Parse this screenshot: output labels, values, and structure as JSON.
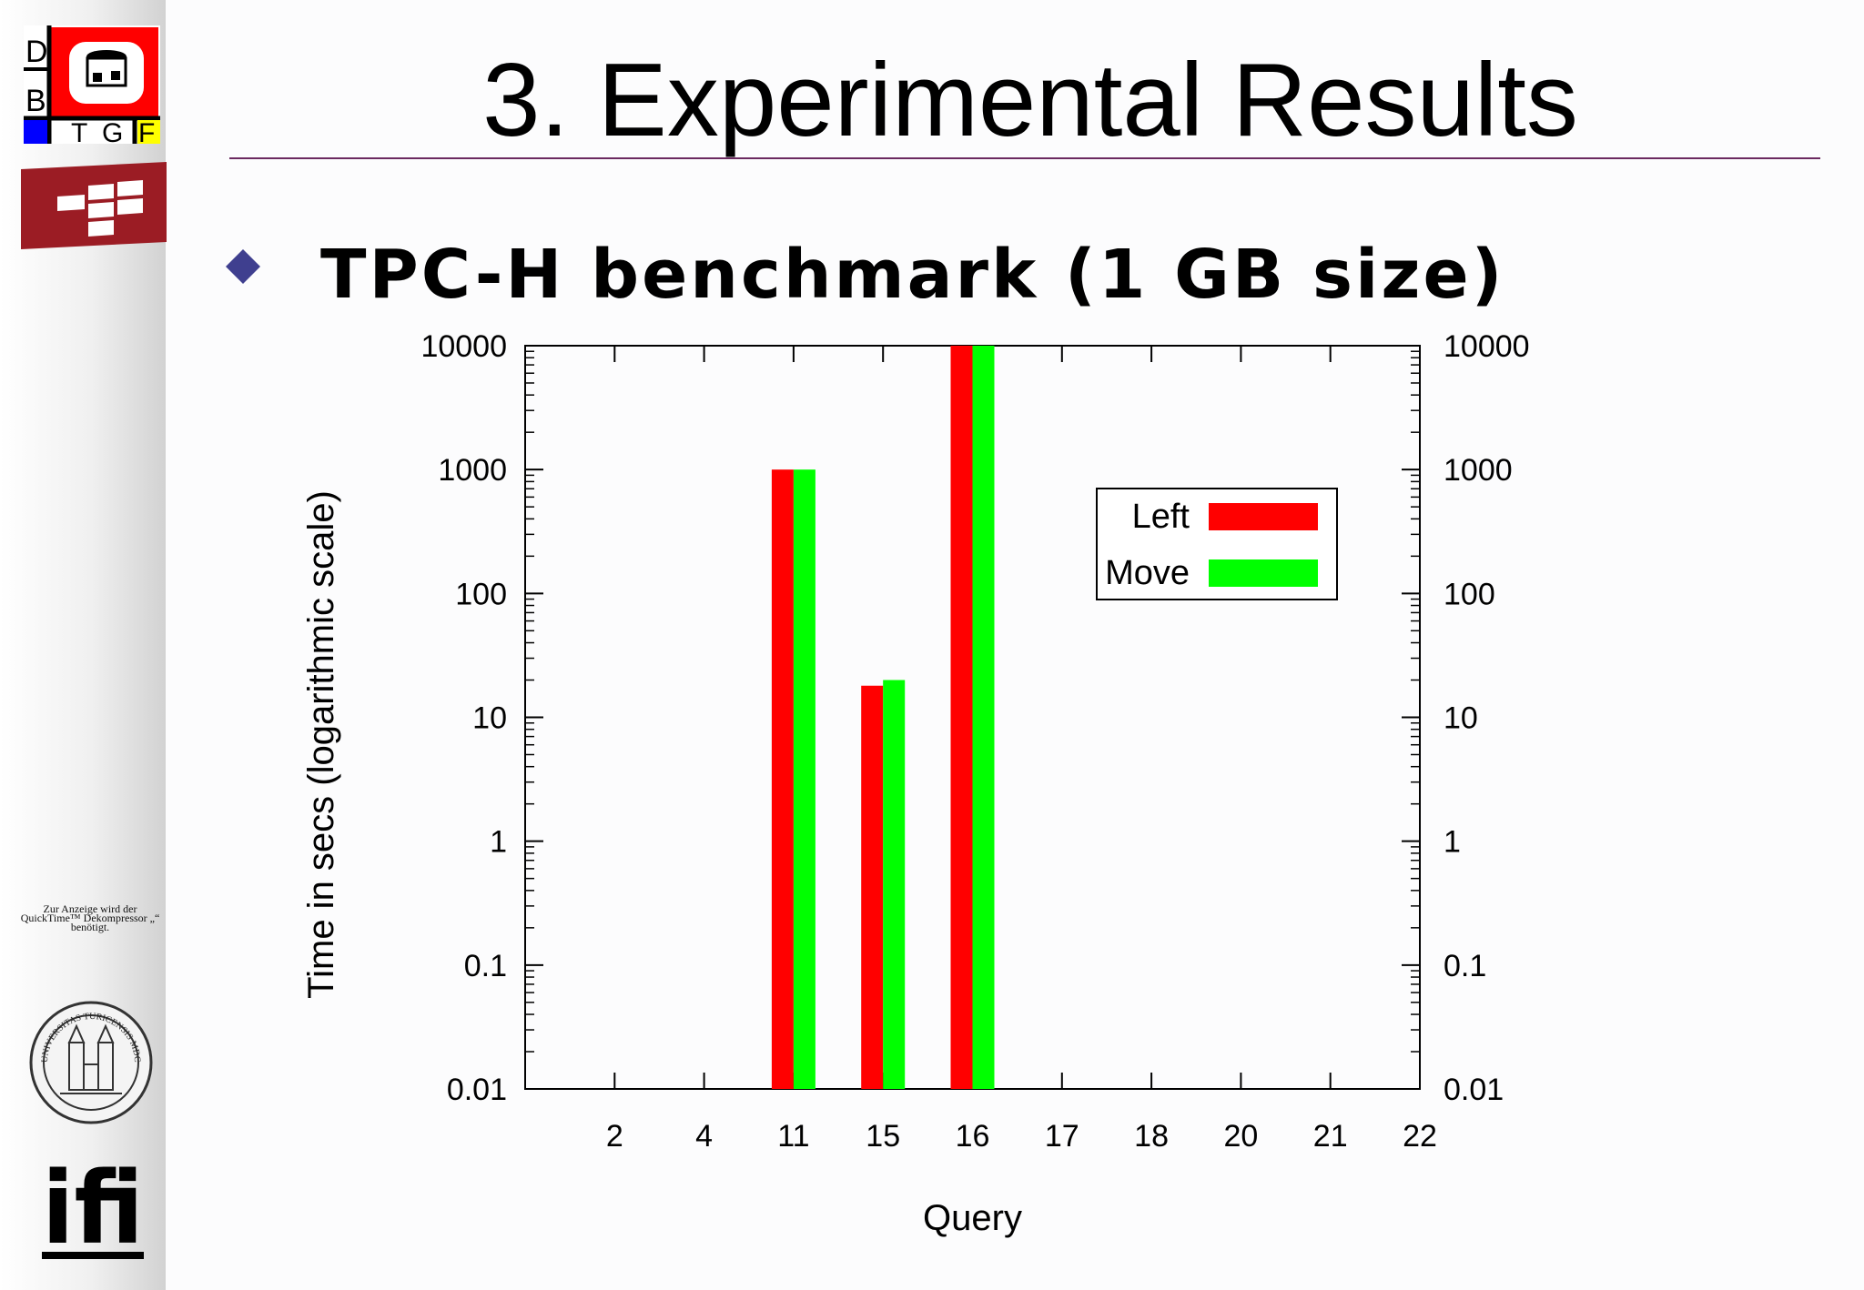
{
  "slide": {
    "title": "3. Experimental Results",
    "bullet": "TPC-H benchmark (1 GB size)"
  },
  "sidebar": {
    "dbtg_logo_letters": [
      "D",
      "B",
      "T",
      "G",
      "F"
    ],
    "quicktime_note": "Zur Anzeige wird der QuickTime™ Dekompressor „“ benötigt.",
    "seal_text": "UNIVERSITAS TURICENSIS MDCCCXXXIII",
    "ifi_logo": "ifi"
  },
  "colors": {
    "title_rule": "#6b2a60",
    "bullet": "#3f3f8f",
    "left_series": "#ff0000",
    "move_series": "#00ff00",
    "dbtg_red": "#ff0000",
    "dbtg_blue": "#0000ff",
    "dbtg_yellow": "#ffff00",
    "uzh_red": "#9b1c24"
  },
  "chart_data": {
    "type": "bar",
    "title": "",
    "xlabel": "Query",
    "ylabel": "Time in secs (logarithmic scale)",
    "yscale": "log",
    "ylim": [
      0.01,
      10000
    ],
    "ytick_labels": [
      "10000",
      "1000",
      "100",
      "10",
      "1",
      "0.1",
      "0.01"
    ],
    "categories": [
      "2",
      "4",
      "11",
      "15",
      "16",
      "17",
      "18",
      "20",
      "21",
      "22"
    ],
    "series": [
      {
        "name": "Left",
        "values": [
          null,
          null,
          1000,
          18,
          10000,
          null,
          null,
          null,
          null,
          null
        ]
      },
      {
        "name": "Move",
        "values": [
          null,
          null,
          1000,
          20,
          10000,
          null,
          null,
          null,
          null,
          null
        ]
      }
    ],
    "legend": "top-right, inside plot",
    "secondary_y_axis": true
  }
}
